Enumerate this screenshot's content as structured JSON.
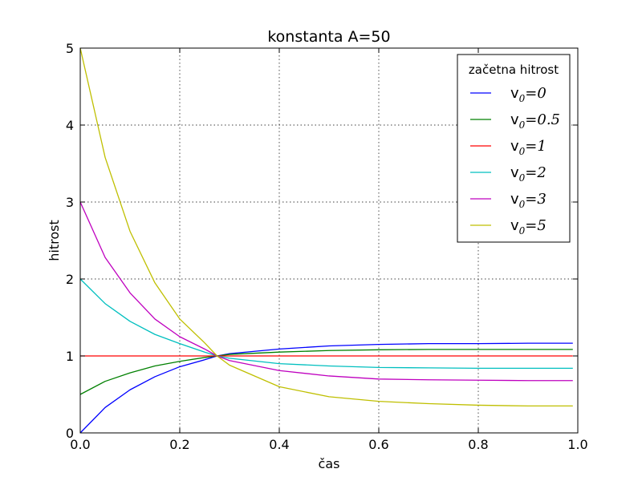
{
  "chart_data": {
    "type": "line",
    "title": "konstanta A=50",
    "xlabel": "čas",
    "ylabel": "hitrost",
    "xlim": [
      0.0,
      1.0
    ],
    "ylim": [
      0,
      5
    ],
    "xticks": [
      "0.0",
      "0.2",
      "0.4",
      "0.6",
      "0.8",
      "1.0"
    ],
    "yticks": [
      "0",
      "1",
      "2",
      "3",
      "4",
      "5"
    ],
    "grid": true,
    "legend": {
      "title": "začetna hitrost",
      "placement": "top-right",
      "items": [
        {
          "prefix": "v",
          "sub": "0",
          "suffix": "=0"
        },
        {
          "prefix": "v",
          "sub": "0",
          "suffix": "=0.5"
        },
        {
          "prefix": "v",
          "sub": "0",
          "suffix": "=1"
        },
        {
          "prefix": "v",
          "sub": "0",
          "suffix": "=2"
        },
        {
          "prefix": "v",
          "sub": "0",
          "suffix": "=3"
        },
        {
          "prefix": "v",
          "sub": "0",
          "suffix": "=5"
        }
      ]
    },
    "series": [
      {
        "name": "v0=0",
        "color": "#0000ff",
        "x": [
          0.0,
          0.05,
          0.1,
          0.15,
          0.2,
          0.25,
          0.275,
          0.3,
          0.4,
          0.5,
          0.6,
          0.7,
          0.8,
          0.9,
          0.99
        ],
        "y": [
          0.0,
          0.33,
          0.56,
          0.73,
          0.86,
          0.95,
          1.0,
          1.03,
          1.09,
          1.13,
          1.15,
          1.16,
          1.16,
          1.165,
          1.165
        ]
      },
      {
        "name": "v0=0.5",
        "color": "#008000",
        "x": [
          0.0,
          0.05,
          0.1,
          0.15,
          0.2,
          0.25,
          0.275,
          0.3,
          0.4,
          0.5,
          0.6,
          0.7,
          0.8,
          0.9,
          0.99
        ],
        "y": [
          0.5,
          0.67,
          0.78,
          0.87,
          0.93,
          0.98,
          1.0,
          1.02,
          1.05,
          1.07,
          1.08,
          1.085,
          1.085,
          1.085,
          1.085
        ]
      },
      {
        "name": "v0=1",
        "color": "#ff0000",
        "x": [
          0.0,
          0.99
        ],
        "y": [
          1.0,
          1.0
        ]
      },
      {
        "name": "v0=2",
        "color": "#00bfbf",
        "x": [
          0.0,
          0.05,
          0.1,
          0.15,
          0.2,
          0.25,
          0.275,
          0.3,
          0.4,
          0.5,
          0.6,
          0.7,
          0.8,
          0.9,
          0.99
        ],
        "y": [
          2.0,
          1.68,
          1.45,
          1.28,
          1.16,
          1.05,
          1.0,
          0.97,
          0.9,
          0.87,
          0.85,
          0.845,
          0.84,
          0.84,
          0.84
        ]
      },
      {
        "name": "v0=3",
        "color": "#bf00bf",
        "x": [
          0.0,
          0.05,
          0.1,
          0.15,
          0.2,
          0.25,
          0.275,
          0.3,
          0.4,
          0.5,
          0.6,
          0.7,
          0.8,
          0.9,
          0.99
        ],
        "y": [
          3.0,
          2.28,
          1.82,
          1.48,
          1.25,
          1.09,
          1.0,
          0.94,
          0.81,
          0.74,
          0.7,
          0.69,
          0.685,
          0.68,
          0.68
        ]
      },
      {
        "name": "v0=5",
        "color": "#bfbf00",
        "x": [
          0.0,
          0.05,
          0.1,
          0.15,
          0.2,
          0.25,
          0.275,
          0.3,
          0.4,
          0.5,
          0.6,
          0.7,
          0.8,
          0.9,
          0.99
        ],
        "y": [
          5.0,
          3.58,
          2.62,
          1.95,
          1.48,
          1.17,
          1.0,
          0.88,
          0.6,
          0.47,
          0.41,
          0.38,
          0.36,
          0.35,
          0.35
        ]
      }
    ]
  }
}
